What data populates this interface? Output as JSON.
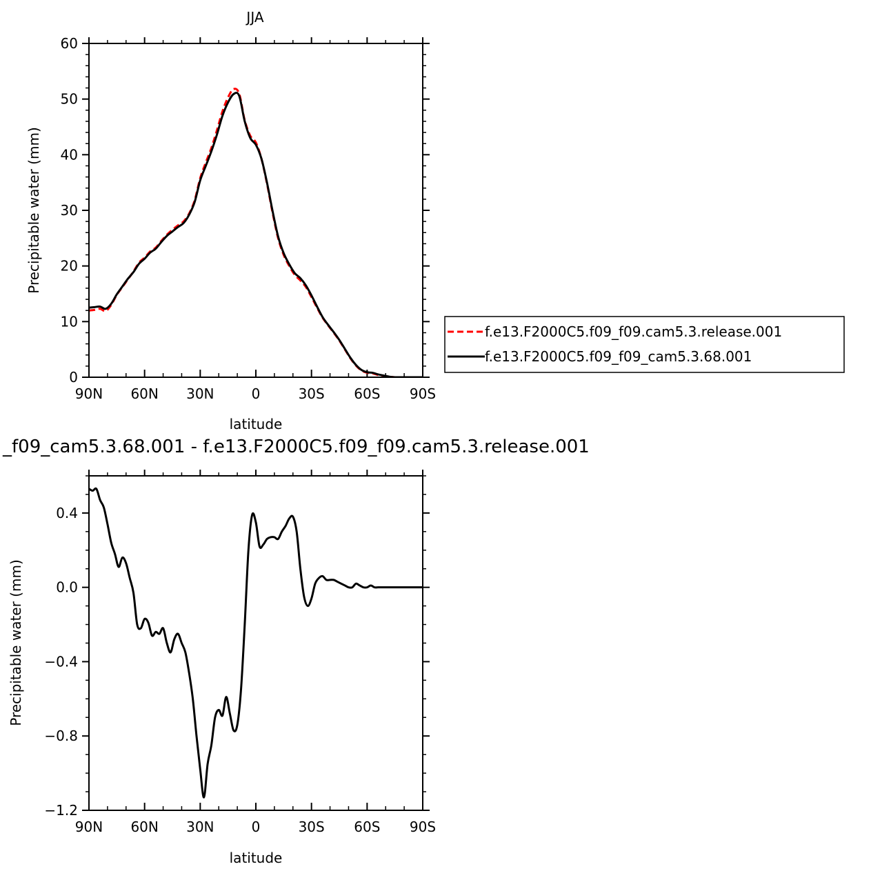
{
  "chart_data": [
    {
      "type": "line",
      "title": "JJA",
      "xlabel": "latitude",
      "ylabel": "Precipitable water (mm)",
      "xlim": [
        90,
        -90
      ],
      "ylim": [
        0,
        60
      ],
      "xticks": [
        90,
        60,
        30,
        0,
        -30,
        -60,
        -90
      ],
      "xtick_labels": [
        "90N",
        "60N",
        "30N",
        "0",
        "30S",
        "60S",
        "90S"
      ],
      "yticks": [
        0,
        10,
        20,
        30,
        40,
        50,
        60
      ],
      "ytick_labels": [
        "0",
        "10",
        "20",
        "30",
        "40",
        "50",
        "60"
      ],
      "grid": false,
      "legend": "right",
      "series": [
        {
          "name": "f.e13.F2000C5.f09_f09.cam5.3.release.001",
          "color": "#ff0000",
          "style": "dashed",
          "x": [
            90,
            87,
            84,
            81,
            78,
            75,
            72,
            69,
            66,
            63,
            60,
            57,
            54,
            51,
            48,
            45,
            42,
            39,
            36,
            33,
            30,
            27,
            24,
            21,
            18,
            15,
            12,
            9,
            6,
            3,
            0,
            -3,
            -6,
            -9,
            -12,
            -15,
            -18,
            -21,
            -24,
            -27,
            -30,
            -33,
            -36,
            -39,
            -42,
            -45,
            -48,
            -51,
            -54,
            -57,
            -60,
            -63,
            -66,
            -69,
            -72,
            -75,
            -78,
            -81,
            -84,
            -87,
            -90
          ],
          "y": [
            12.0,
            12.1,
            12.3,
            11.9,
            13.0,
            14.8,
            16.2,
            17.6,
            19.0,
            20.6,
            21.5,
            22.6,
            23.3,
            24.5,
            25.6,
            26.5,
            27.3,
            28.0,
            29.4,
            31.8,
            35.8,
            38.6,
            41.2,
            44.4,
            47.8,
            50.3,
            51.8,
            51.0,
            46.2,
            43.4,
            42.2,
            39.3,
            34.8,
            29.6,
            25.0,
            22.0,
            20.0,
            18.4,
            17.4,
            16.2,
            14.4,
            12.5,
            10.7,
            9.3,
            8.0,
            6.6,
            5.0,
            3.4,
            2.1,
            1.2,
            0.8,
            0.7,
            0.4,
            0.2,
            0.1,
            0.0,
            0.0,
            0.0,
            0.0,
            0.0,
            0.0
          ]
        },
        {
          "name": "f.e13.F2000C5.f09_f09_cam5.3.68.001",
          "color": "#000000",
          "style": "solid",
          "x": [
            90,
            87,
            84,
            81,
            78,
            75,
            72,
            69,
            66,
            63,
            60,
            57,
            54,
            51,
            48,
            45,
            42,
            39,
            36,
            33,
            30,
            27,
            24,
            21,
            18,
            15,
            12,
            9,
            6,
            3,
            0,
            -3,
            -6,
            -9,
            -12,
            -15,
            -18,
            -21,
            -24,
            -27,
            -30,
            -33,
            -36,
            -39,
            -42,
            -45,
            -48,
            -51,
            -54,
            -57,
            -60,
            -63,
            -66,
            -69,
            -72,
            -75,
            -78,
            -81,
            -84,
            -87,
            -90
          ],
          "y": [
            12.5,
            12.6,
            12.7,
            12.3,
            13.2,
            14.9,
            16.3,
            17.7,
            18.9,
            20.4,
            21.3,
            22.4,
            23.1,
            24.3,
            25.4,
            26.2,
            27.0,
            27.7,
            29.2,
            31.5,
            35.4,
            38.0,
            40.6,
            43.6,
            47.0,
            49.4,
            50.9,
            50.6,
            46.0,
            43.0,
            41.8,
            39.3,
            35.0,
            29.9,
            25.3,
            22.3,
            20.3,
            18.7,
            17.8,
            16.5,
            14.7,
            12.7,
            10.8,
            9.4,
            8.1,
            6.7,
            5.1,
            3.5,
            2.2,
            1.3,
            0.9,
            0.8,
            0.5,
            0.3,
            0.1,
            0.0,
            0.0,
            0.0,
            0.0,
            0.0,
            0.0
          ]
        }
      ]
    },
    {
      "type": "line",
      "title": "_f09_cam5.3.68.001 - f.e13.F2000C5.f09_f09.cam5.3.release.001",
      "xlabel": "latitude",
      "ylabel": "Precipitable water (mm)",
      "xlim": [
        90,
        -90
      ],
      "ylim": [
        -1.2,
        0.6
      ],
      "xticks": [
        90,
        60,
        30,
        0,
        -30,
        -60,
        -90
      ],
      "xtick_labels": [
        "90N",
        "60N",
        "30N",
        "0",
        "30S",
        "60S",
        "90S"
      ],
      "yticks": [
        -1.2,
        -0.8,
        -0.4,
        0.0,
        0.4
      ],
      "ytick_labels": [
        "−1.2",
        "−0.8",
        "−0.4",
        "0.0",
        "0.4"
      ],
      "grid": false,
      "series": [
        {
          "color": "#000000",
          "style": "solid",
          "x": [
            90,
            88,
            86,
            84,
            82,
            80,
            78,
            76,
            74,
            72,
            70,
            68,
            66,
            64,
            62,
            60,
            58,
            56,
            54,
            52,
            50,
            48,
            46,
            44,
            42,
            40,
            38,
            36,
            34,
            32,
            30,
            28,
            26,
            24,
            22,
            20,
            18,
            16,
            14,
            12,
            10,
            8,
            6,
            4,
            2,
            0,
            -2,
            -4,
            -6,
            -8,
            -10,
            -12,
            -14,
            -16,
            -18,
            -20,
            -22,
            -24,
            -26,
            -28,
            -30,
            -32,
            -34,
            -36,
            -38,
            -40,
            -42,
            -44,
            -46,
            -48,
            -50,
            -52,
            -54,
            -56,
            -58,
            -60,
            -62,
            -64,
            -66,
            -68,
            -70,
            -72,
            -74,
            -76,
            -78,
            -80,
            -82,
            -84,
            -86,
            -88,
            -90
          ],
          "y": [
            0.53,
            0.52,
            0.53,
            0.47,
            0.43,
            0.34,
            0.24,
            0.18,
            0.11,
            0.16,
            0.13,
            0.05,
            -0.03,
            -0.2,
            -0.22,
            -0.17,
            -0.19,
            -0.26,
            -0.24,
            -0.25,
            -0.22,
            -0.3,
            -0.35,
            -0.28,
            -0.25,
            -0.3,
            -0.35,
            -0.46,
            -0.6,
            -0.8,
            -0.98,
            -1.13,
            -0.95,
            -0.85,
            -0.7,
            -0.66,
            -0.69,
            -0.59,
            -0.68,
            -0.77,
            -0.74,
            -0.55,
            -0.2,
            0.2,
            0.39,
            0.35,
            0.22,
            0.23,
            0.26,
            0.27,
            0.27,
            0.26,
            0.3,
            0.33,
            0.37,
            0.38,
            0.3,
            0.1,
            -0.05,
            -0.1,
            -0.06,
            0.02,
            0.05,
            0.06,
            0.04,
            0.04,
            0.04,
            0.03,
            0.02,
            0.01,
            0.0,
            0.0,
            0.02,
            0.01,
            0.0,
            0.0,
            0.01,
            0.0,
            0.0,
            0.0,
            0.0,
            0.0,
            0.0,
            0.0,
            0.0,
            0.0,
            0.0,
            0.0,
            0.0,
            0.0,
            0.0
          ]
        }
      ]
    }
  ]
}
